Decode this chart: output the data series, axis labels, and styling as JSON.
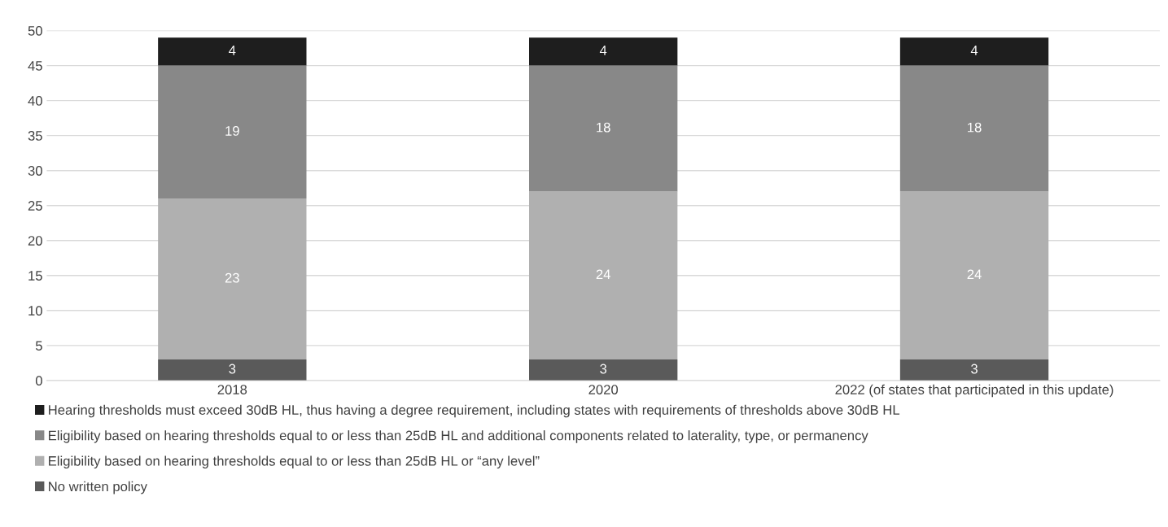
{
  "chart_data": {
    "type": "bar",
    "stacked": true,
    "categories": [
      "2018",
      "2020",
      "2022 (of states that participated in this update)"
    ],
    "series": [
      {
        "name": "No written policy",
        "color": "#5a5a5a",
        "values": [
          3,
          3,
          3
        ]
      },
      {
        "name": "Eligibility based on hearing thresholds equal to or less than 25dB HL or “any level”",
        "color": "#b0b0b0",
        "values": [
          23,
          24,
          24
        ]
      },
      {
        "name": "Eligibility based on hearing thresholds equal to or less than 25dB HL and additional components related to laterality, type, or permanency",
        "color": "#888888",
        "values": [
          19,
          18,
          18
        ]
      },
      {
        "name": "Hearing thresholds must exceed 30dB HL, thus having a degree requirement, including states with requirements of thresholds above 30dB HL",
        "color": "#1e1e1e",
        "values": [
          4,
          4,
          4
        ]
      }
    ],
    "ylim": [
      0,
      50
    ],
    "yticks": [
      0,
      5,
      10,
      15,
      20,
      25,
      30,
      35,
      40,
      45,
      50
    ],
    "grid": "y",
    "legend": "bottom",
    "data_labels": true
  }
}
